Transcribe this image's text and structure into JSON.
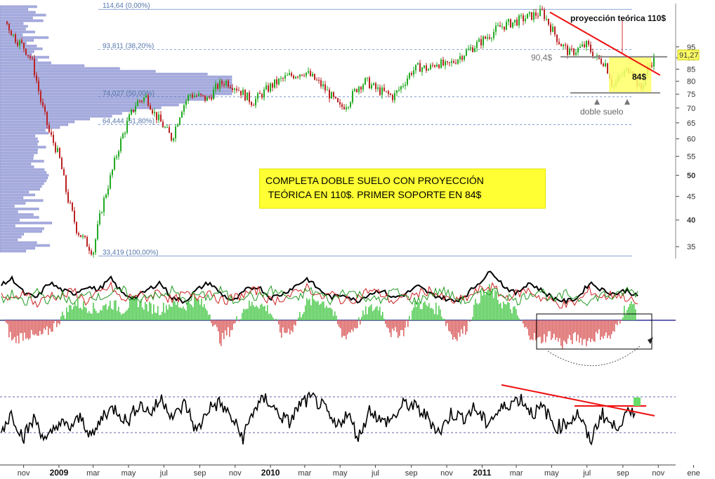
{
  "chart_data": [
    {
      "type": "line",
      "panel": "price",
      "series": [
        {
          "values": [
            108,
            100,
            95,
            89,
            72,
            62,
            55,
            45,
            38,
            34,
            42,
            50,
            58,
            66,
            72,
            74,
            68,
            60,
            70,
            75,
            74,
            73,
            78,
            80,
            78,
            72,
            78,
            80,
            82,
            84,
            78,
            70,
            72,
            78,
            80,
            77,
            74,
            78,
            84,
            86,
            85,
            88,
            86,
            92,
            98,
            105,
            113,
            104,
            97,
            92,
            96,
            90,
            88,
            78,
            83,
            86,
            76,
            86,
            91
          ]
        }
      ],
      "x_dates": [
        "2008-10-01",
        "2008-10-15",
        "2008-11-01",
        "2008-11-15",
        "2008-12-01",
        "2008-12-15",
        "2009-01-01",
        "2009-01-15",
        "2009-02-01",
        "2009-03-01",
        "2009-03-15",
        "2009-04-01",
        "2009-04-15",
        "2009-05-01",
        "2009-05-15",
        "2009-06-01",
        "2009-06-15",
        "2009-07-15",
        "2009-08-01",
        "2009-08-15",
        "2009-09-01",
        "2009-09-15",
        "2009-10-01",
        "2009-10-15",
        "2009-11-01",
        "2009-12-01",
        "2010-01-01",
        "2010-01-15",
        "2010-02-01",
        "2010-03-01",
        "2010-04-01",
        "2010-05-01",
        "2010-05-15",
        "2010-06-01",
        "2010-06-15",
        "2010-07-01",
        "2010-08-01",
        "2010-08-15",
        "2010-09-01",
        "2010-09-15",
        "2010-10-01",
        "2010-10-15",
        "2010-11-01",
        "2010-12-01",
        "2011-01-01",
        "2011-02-01",
        "2011-04-15",
        "2011-05-01",
        "2011-05-15",
        "2011-06-01",
        "2011-07-01",
        "2011-07-15",
        "2011-08-01",
        "2011-08-15",
        "2011-09-01",
        "2011-09-15",
        "2011-10-01",
        "2011-10-15",
        "2011-10-28"
      ],
      "y_ticks": [
        "95",
        "90",
        "85",
        "80",
        "75",
        "70",
        "65",
        "60",
        "55",
        "50",
        "45",
        "40",
        "35"
      ],
      "y_scale": "log",
      "ylim": [
        33,
        118
      ],
      "last_price": "91,27",
      "fib_levels": [
        "114,64 (0,00%)",
        "93,811 (38,20%)",
        "74,027 (50,00%)",
        "64,444 (61,80%)",
        "33,419 (100,00%)"
      ],
      "annotations": {
        "projection": "proyección teórica 110$",
        "neck": "90,4$",
        "support": "84$",
        "pattern": "doble suelo"
      },
      "note_lines": [
        "COMPLETA DOBLE SUELO CON PROYECCIÓN",
        " TEÓRICA EN 110$. PRIMER SOPORTE EN 84$"
      ],
      "colors": {
        "up": "#22aa22",
        "down": "#bb2222",
        "trendline": "#ee1111",
        "highlight": "#ffff66",
        "profile": "#aab0e0"
      }
    },
    {
      "type": "bar",
      "panel": "oscillator",
      "series": [
        {
          "values": [
            0.2,
            -0.6,
            -0.4,
            -0.5,
            -0.3,
            0.1,
            0.5,
            0.4,
            0.3,
            0.5,
            0.3,
            0.6,
            0.4,
            0.3,
            0.5,
            0.4,
            0.6,
            0.3,
            -0.6,
            -0.2,
            0.4,
            0.5,
            0.3,
            -0.4,
            -0.2,
            0.5,
            0.6,
            0.4,
            -0.5,
            -0.2,
            0.3,
            0.4,
            -0.4,
            -0.3,
            0.5,
            0.4,
            0.3,
            -0.5,
            -0.3,
            0.6,
            0.9,
            0.5,
            0.3,
            -0.3,
            -0.6,
            -0.4,
            -0.7,
            -0.5,
            -0.6,
            -0.4,
            -0.5,
            0.3,
            0.5
          ]
        }
      ],
      "lines": [
        {
          "values": [
            0.7,
            0.9,
            0.5,
            0.4,
            0.8,
            0.6,
            0.5,
            0.7,
            0.6,
            0.9,
            0.5,
            0.4,
            0.6,
            0.8,
            0.4,
            0.3,
            0.6,
            0.8,
            0.5,
            0.3,
            0.6,
            0.7,
            0.4,
            0.5,
            0.7,
            0.9,
            0.6,
            0.4,
            0.5,
            0.3,
            0.5,
            0.6,
            0.4,
            0.5,
            0.7,
            0.5,
            0.4,
            0.3,
            0.5,
            0.8,
            1.1,
            0.7,
            0.5,
            0.8,
            0.6,
            0.4,
            0.3,
            0.4,
            0.8,
            0.6,
            0.5,
            0.6,
            0.4
          ]
        },
        {
          "values": [
            0.5,
            0.3,
            0.6,
            0.2,
            0.5,
            0.4,
            0.6,
            0.3,
            0.5,
            0.7,
            0.3,
            0.5,
            0.4,
            0.6,
            0.3,
            0.5,
            0.4,
            0.6,
            0.3,
            0.4,
            0.5,
            0.6,
            0.3,
            0.4,
            0.5,
            0.7,
            0.4,
            0.5,
            0.3,
            0.4,
            0.6,
            0.5,
            0.3,
            0.4,
            0.5,
            0.6,
            0.4,
            0.3,
            0.4,
            0.6,
            0.7,
            0.4,
            0.5,
            0.6,
            0.4,
            0.3,
            0.2,
            0.3,
            0.6,
            0.4,
            0.5,
            0.4,
            0.2
          ]
        },
        {
          "values": [
            0.3,
            0.5,
            0.2,
            0.6,
            0.3,
            0.5,
            0.2,
            0.6,
            0.4,
            0.5,
            0.6,
            0.3,
            0.5,
            0.4,
            0.6,
            0.3,
            0.5,
            0.4,
            0.6,
            0.3,
            0.5,
            0.4,
            0.6,
            0.5,
            0.3,
            0.6,
            0.5,
            0.3,
            0.6,
            0.5,
            0.4,
            0.3,
            0.6,
            0.4,
            0.3,
            0.5,
            0.6,
            0.4,
            0.3,
            0.5,
            0.6,
            0.5,
            0.3,
            0.5,
            0.6,
            0.3,
            0.5,
            0.4,
            0.3,
            0.5,
            0.4,
            0.6,
            0.5
          ]
        }
      ],
      "colors": {
        "positive": "#55cc55",
        "negative": "#dd6666",
        "line1": "#000000",
        "line2": "#cc2222",
        "line3": "#229922"
      }
    },
    {
      "type": "line",
      "panel": "momentum",
      "series": [
        {
          "values": [
            0.2,
            0.6,
            0.1,
            0.5,
            0.0,
            0.4,
            0.3,
            0.5,
            0.1,
            0.6,
            0.7,
            0.4,
            0.8,
            0.6,
            0.9,
            0.5,
            0.8,
            0.2,
            0.7,
            0.8,
            0.5,
            0.1,
            0.7,
            0.9,
            0.6,
            0.4,
            0.8,
            0.9,
            0.7,
            0.3,
            0.6,
            0.1,
            0.7,
            0.4,
            0.5,
            0.8,
            0.7,
            0.5,
            0.2,
            0.6,
            0.5,
            0.7,
            0.4,
            0.6,
            0.8,
            0.9,
            0.6,
            0.7,
            0.3,
            0.4,
            0.6,
            0.0,
            0.6,
            0.3,
            0.5,
            0.7
          ]
        }
      ],
      "levels": [
        0.9,
        0.1
      ],
      "colors": {
        "line": "#000000",
        "trendline": "#ee1111",
        "highlight": "#66dd66"
      }
    }
  ],
  "x_axis": {
    "labels": [
      "nov",
      "2009",
      "mar",
      "may",
      "jul",
      "sep",
      "nov",
      "2010",
      "mar",
      "may",
      "jul",
      "sep",
      "nov",
      "2011",
      "mar",
      "may",
      "jul",
      "sep",
      "nov",
      "ene"
    ],
    "bold": [
      "2009",
      "2010",
      "2011"
    ]
  }
}
